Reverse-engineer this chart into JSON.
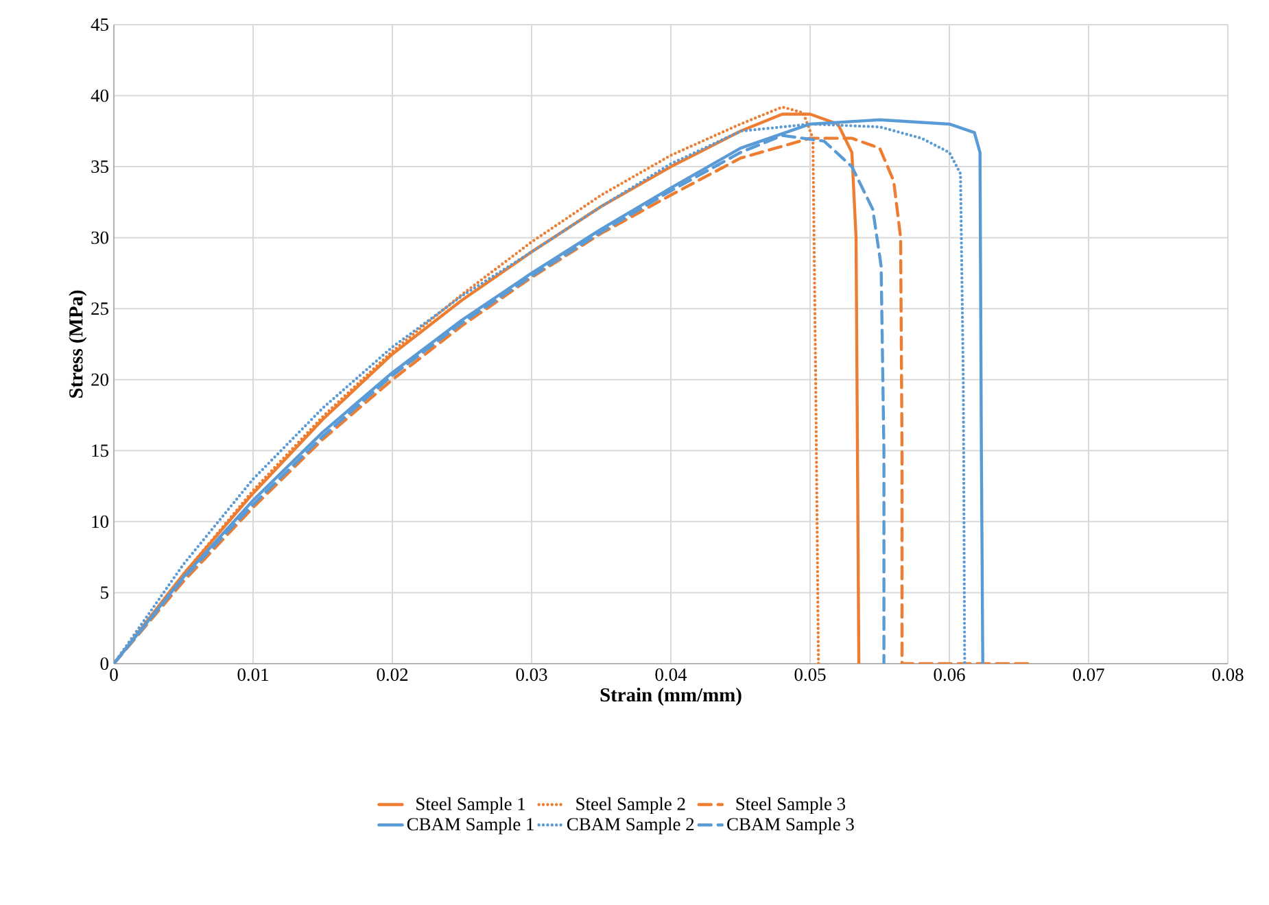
{
  "chart_data": {
    "type": "line",
    "xlabel": "Strain (mm/mm)",
    "ylabel": "Stress (MPa)",
    "xlim": [
      0,
      0.08
    ],
    "ylim": [
      0,
      45
    ],
    "xticks": [
      0,
      0.01,
      0.02,
      0.03,
      0.04,
      0.05,
      0.06,
      0.07,
      0.08
    ],
    "yticks": [
      0,
      5,
      10,
      15,
      20,
      25,
      30,
      35,
      40,
      45
    ],
    "grid": true,
    "legend": "bottom",
    "marker": "none",
    "series": [
      {
        "name": "Steel Sample 1",
        "color": "#ed7d31",
        "line_style": "solid",
        "x": [
          0,
          0.005,
          0.01,
          0.015,
          0.02,
          0.025,
          0.03,
          0.035,
          0.04,
          0.045,
          0.048,
          0.05,
          0.052,
          0.053,
          0.0533,
          0.0534,
          0.0535
        ],
        "values": [
          0,
          6.3,
          12,
          17.2,
          21.8,
          25.6,
          29,
          32.2,
          35,
          37.5,
          38.7,
          38.7,
          38,
          36,
          30,
          15,
          0
        ]
      },
      {
        "name": "Steel Sample 2",
        "color": "#ed7d31",
        "line_style": "dotted",
        "x": [
          0,
          0.005,
          0.01,
          0.015,
          0.02,
          0.025,
          0.03,
          0.035,
          0.04,
          0.045,
          0.048,
          0.0495,
          0.0502,
          0.0504,
          0.0506
        ],
        "values": [
          0,
          6.3,
          12.2,
          17.4,
          22,
          26,
          29.7,
          33,
          35.8,
          38,
          39.2,
          38.8,
          37,
          20,
          0
        ]
      },
      {
        "name": "Steel Sample 3",
        "color": "#ed7d31",
        "line_style": "dashed",
        "x": [
          0,
          0.005,
          0.01,
          0.015,
          0.02,
          0.025,
          0.03,
          0.035,
          0.04,
          0.045,
          0.05,
          0.053,
          0.055,
          0.056,
          0.0565,
          0.0566,
          0.0566,
          0.066
        ],
        "values": [
          0,
          5.8,
          11,
          15.8,
          20,
          23.8,
          27.2,
          30.3,
          33,
          35.6,
          37,
          37,
          36.3,
          34,
          30,
          15,
          0,
          0
        ]
      },
      {
        "name": "CBAM Sample 1",
        "color": "#5b9bd5",
        "line_style": "solid",
        "x": [
          0,
          0.005,
          0.01,
          0.015,
          0.02,
          0.025,
          0.03,
          0.035,
          0.04,
          0.045,
          0.05,
          0.055,
          0.06,
          0.0618,
          0.0622,
          0.0623,
          0.0624
        ],
        "values": [
          0,
          6.1,
          11.5,
          16.3,
          20.5,
          24.2,
          27.5,
          30.6,
          33.5,
          36.3,
          38,
          38.3,
          38,
          37.4,
          36,
          15,
          0
        ]
      },
      {
        "name": "CBAM Sample 2",
        "color": "#5b9bd5",
        "line_style": "dotted",
        "x": [
          0,
          0.005,
          0.01,
          0.015,
          0.02,
          0.025,
          0.03,
          0.035,
          0.04,
          0.045,
          0.05,
          0.055,
          0.058,
          0.06,
          0.0608,
          0.061,
          0.0611
        ],
        "values": [
          0,
          7,
          13,
          18,
          22.3,
          25.9,
          29,
          32.2,
          35.2,
          37.5,
          38,
          37.8,
          37,
          36,
          34.5,
          20,
          0
        ]
      },
      {
        "name": "CBAM Sample 3",
        "color": "#5b9bd5",
        "line_style": "dashed",
        "x": [
          0,
          0.005,
          0.01,
          0.015,
          0.02,
          0.025,
          0.03,
          0.035,
          0.04,
          0.045,
          0.048,
          0.051,
          0.053,
          0.0545,
          0.0551,
          0.0553,
          0.0553
        ],
        "values": [
          0,
          6,
          11.2,
          16,
          20.3,
          24,
          27.3,
          30.4,
          33.3,
          36,
          37.2,
          36.8,
          35,
          32,
          28,
          15,
          0
        ]
      }
    ]
  }
}
